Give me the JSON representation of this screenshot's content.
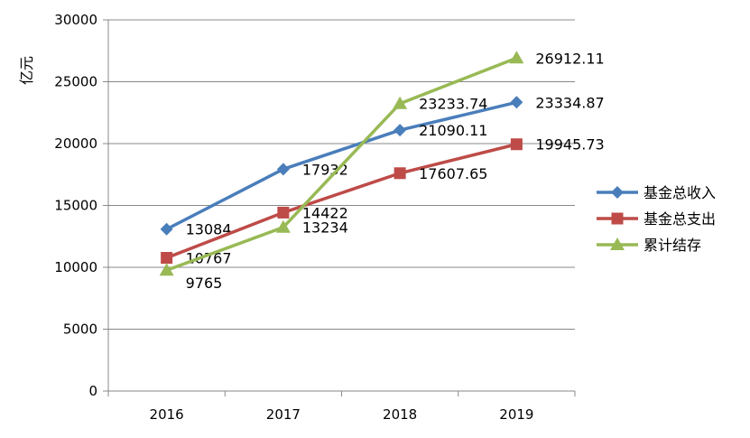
{
  "chart_data": {
    "type": "line",
    "title": "",
    "xlabel": "",
    "ylabel": "亿元",
    "categories": [
      "2016",
      "2017",
      "2018",
      "2019"
    ],
    "ylim": [
      0,
      30000
    ],
    "yticks": [
      "0",
      "5000",
      "10000",
      "15000",
      "20000",
      "25000",
      "30000"
    ],
    "grid": true,
    "legend": "right",
    "series": [
      {
        "name": "基金总收入",
        "color": "#4a7ebb",
        "marker": "diamond",
        "values": [
          13084,
          17932,
          21090.11,
          23334.87
        ],
        "labels": [
          "13084",
          "17932",
          "21090.11",
          "23334.87"
        ]
      },
      {
        "name": "基金总支出",
        "color": "#be4b48",
        "marker": "square",
        "values": [
          10767,
          14422,
          17607.65,
          19945.73
        ],
        "labels": [
          "10767",
          "14422",
          "17607.65",
          "19945.73"
        ]
      },
      {
        "name": "累计结存",
        "color": "#98b954",
        "marker": "triangle",
        "values": [
          9765,
          13234,
          23233.74,
          26912.11
        ],
        "labels": [
          "9765",
          "13234",
          "23233.74",
          "26912.11"
        ]
      }
    ]
  }
}
